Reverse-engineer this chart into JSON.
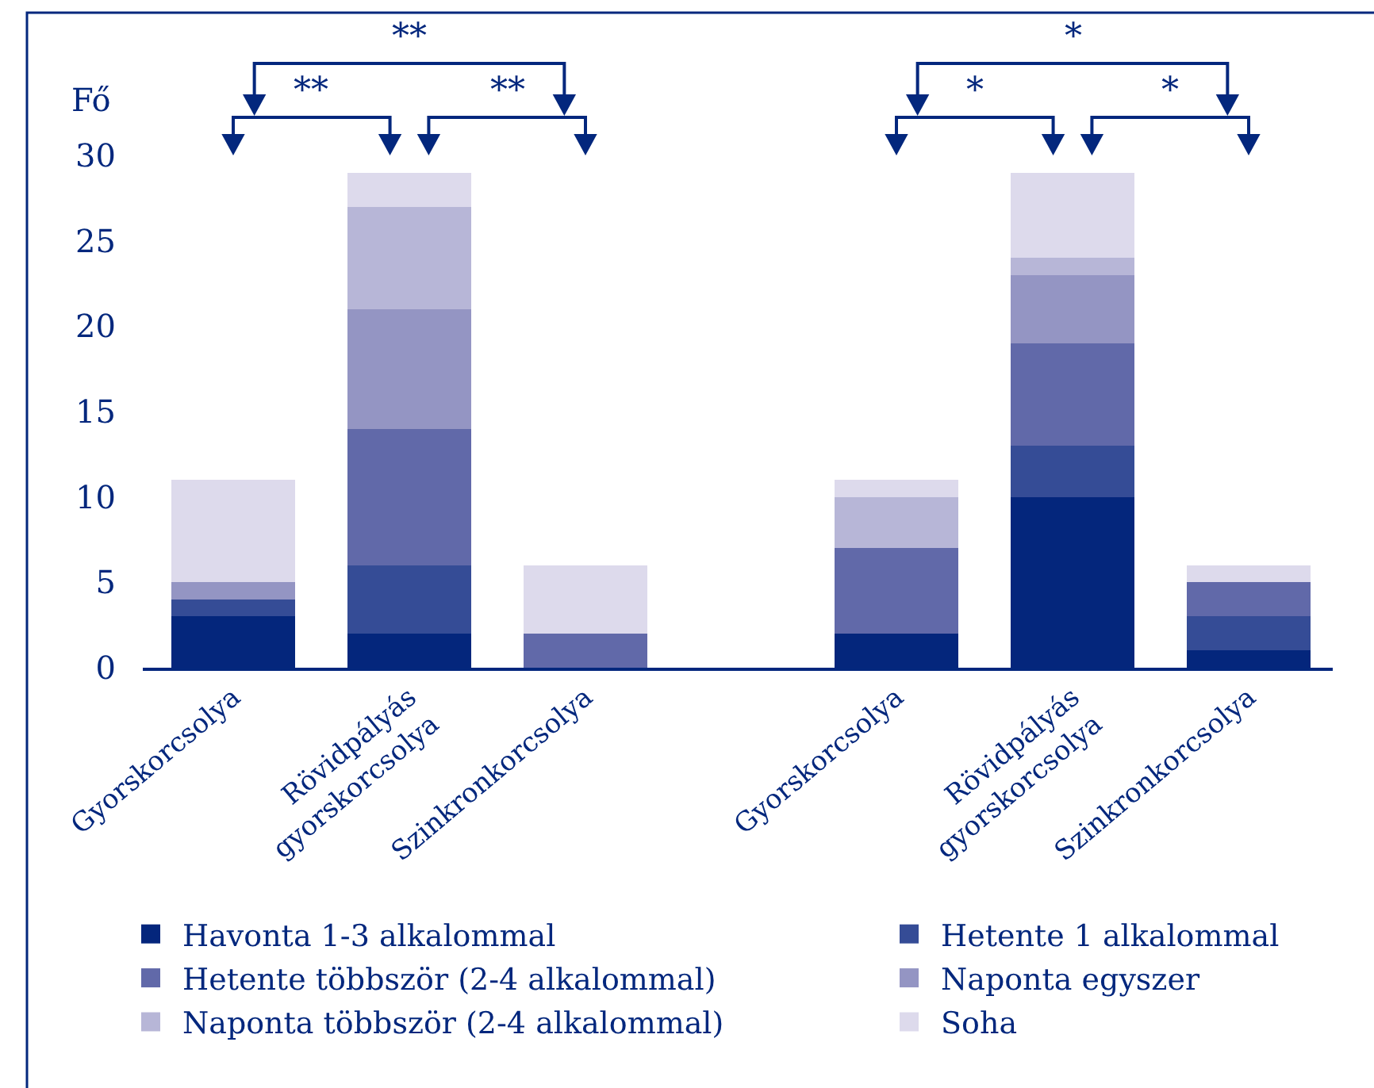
{
  "chart_data": [
    {
      "type": "bar",
      "stacked": true,
      "categories": [
        "Gyorskorcsolya",
        "Rövidpályás gyorskorcsolya",
        "Szinkronkorcsolya"
      ],
      "series": [
        {
          "name": "Havonta 1-3 alkalommal",
          "color": "#04267c",
          "values": [
            3,
            2,
            0
          ]
        },
        {
          "name": "Hetente 1 alkalommal",
          "color": "#354c96",
          "values": [
            1,
            4,
            0
          ]
        },
        {
          "name": "Hetente többször (2-4 alkalommal)",
          "color": "#6169a9",
          "values": [
            0,
            8,
            2
          ]
        },
        {
          "name": "Naponta egyszer",
          "color": "#9495c3",
          "values": [
            1,
            7,
            0
          ]
        },
        {
          "name": "Naponta többször (2-4 alkalommal)",
          "color": "#b7b6d7",
          "values": [
            0,
            6,
            0
          ]
        },
        {
          "name": "Soha",
          "color": "#dddaec",
          "values": [
            6,
            2,
            4
          ]
        }
      ],
      "ylabel": "Fő",
      "ylim": [
        0,
        30
      ],
      "yticks": [
        0,
        5,
        10,
        15,
        20,
        25,
        30
      ],
      "legend": "bottom",
      "annotations": [
        "**",
        "**",
        "**"
      ]
    },
    {
      "type": "bar",
      "stacked": true,
      "categories": [
        "Gyorskorcsolya",
        "Rövidpályás gyorskorcsolya",
        "Szinkronkorcsolya"
      ],
      "series": [
        {
          "color": "#04267c",
          "values": [
            2,
            10,
            1
          ]
        },
        {
          "color": "#354c96",
          "values": [
            0,
            3,
            2
          ]
        },
        {
          "color": "#6169a9",
          "values": [
            5,
            6,
            2
          ]
        },
        {
          "color": "#9495c3",
          "values": [
            0,
            4,
            0
          ]
        },
        {
          "color": "#b7b6d7",
          "values": [
            3,
            1,
            0
          ]
        },
        {
          "color": "#dddaec",
          "values": [
            1,
            5,
            1
          ]
        }
      ],
      "ylim": [
        0,
        30
      ],
      "yticks": [
        0,
        5,
        10,
        15,
        20,
        25,
        30
      ],
      "tick_labels": "x",
      "annotations": [
        "*",
        "*",
        "*"
      ]
    }
  ]
}
